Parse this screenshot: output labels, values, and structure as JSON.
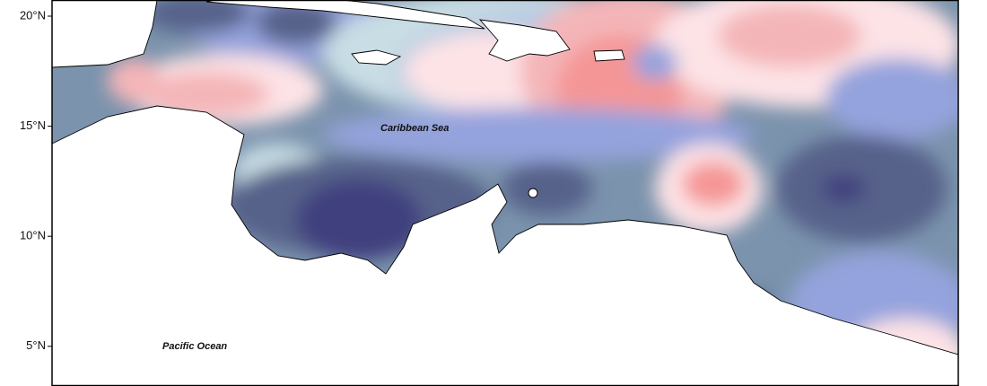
{
  "axis": {
    "lat_labels": [
      "20°N",
      "15°N",
      "10°N",
      "5°N"
    ]
  },
  "labels": {
    "sea": "Caribbean Sea",
    "ocean": "Pacific Ocean"
  }
}
